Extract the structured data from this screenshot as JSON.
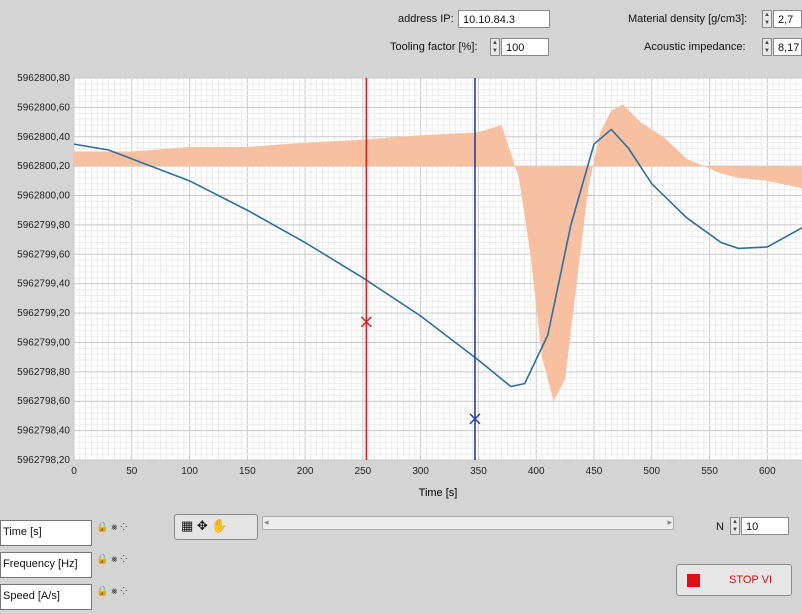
{
  "controls": {
    "address_ip": {
      "label": "address IP:",
      "value": "10.10.84.3"
    },
    "tooling_factor": {
      "label": "Tooling factor [%]:",
      "value": "100"
    },
    "material_density": {
      "label": "Material density [g/cm3]:",
      "value": "2,7"
    },
    "acoustic_impedance": {
      "label": "Acoustic impedance:",
      "value": "8,17"
    }
  },
  "chart_data": {
    "type": "line",
    "xlabel": "Time [s]",
    "xlim": [
      0,
      630
    ],
    "ylim": [
      5962798.2,
      5962800.8
    ],
    "x_ticks": [
      0,
      50,
      100,
      150,
      200,
      250,
      300,
      350,
      400,
      450,
      500,
      550,
      600
    ],
    "y_ticks": [
      "5962800,80",
      "5962800,60",
      "5962800,40",
      "5962800,20",
      "5962800,00",
      "5962799,80",
      "5962799,60",
      "5962799,40",
      "5962799,20",
      "5962799,00",
      "5962798,80",
      "5962798,60",
      "5962798,40",
      "5962798,20"
    ],
    "series": [
      {
        "color": "#2e6fa0",
        "x": [
          0,
          30,
          60,
          100,
          150,
          200,
          250,
          300,
          350,
          378,
          390,
          410,
          430,
          450,
          465,
          480,
          500,
          530,
          560,
          575,
          600,
          630
        ],
        "y": [
          5962800.35,
          5962800.31,
          5962800.22,
          5962800.1,
          5962799.9,
          5962799.68,
          5962799.44,
          5962799.18,
          5962798.88,
          5962798.7,
          5962798.72,
          5962799.05,
          5962799.8,
          5962800.35,
          5962800.45,
          5962800.32,
          5962800.08,
          5962799.85,
          5962799.68,
          5962799.64,
          5962799.65,
          5962799.78
        ]
      },
      {
        "color": "#f7c0a0",
        "kind": "area",
        "baseline": 5962800.2,
        "x": [
          0,
          50,
          100,
          150,
          200,
          250,
          300,
          350,
          370,
          385,
          395,
          405,
          415,
          425,
          435,
          445,
          455,
          465,
          475,
          490,
          510,
          530,
          560,
          575,
          600,
          630
        ],
        "y": [
          5962800.3,
          5962800.3,
          5962800.33,
          5962800.33,
          5962800.36,
          5962800.38,
          5962800.41,
          5962800.43,
          5962800.48,
          5962800.12,
          5962799.6,
          5962798.9,
          5962798.6,
          5962798.75,
          5962799.4,
          5962800.05,
          5962800.42,
          5962800.58,
          5962800.62,
          5962800.5,
          5962800.4,
          5962800.25,
          5962800.15,
          5962800.12,
          5962800.1,
          5962800.05
        ]
      }
    ],
    "cursors": [
      {
        "x": 253,
        "y": 5962799.14,
        "color": "#e02020"
      },
      {
        "x": 347,
        "y": 5962798.48,
        "color": "#2a3f9a"
      }
    ]
  },
  "legend": [
    {
      "label": "Time [s]"
    },
    {
      "label": "Frequency [Hz]"
    },
    {
      "label": "Speed [A/s]"
    }
  ],
  "legend_icons": "🔒 ⨳ ⁘",
  "palette_glyphs": "▦ ✥ ✋",
  "n_control": {
    "label": "N",
    "value": "10"
  },
  "stop_button": {
    "label": "STOP VI"
  }
}
